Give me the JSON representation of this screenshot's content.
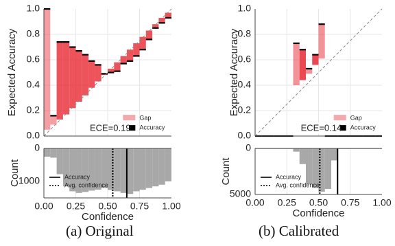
{
  "chart_data": [
    {
      "type": "bar",
      "panel": "Original",
      "caption": "(a) Original",
      "reliability": {
        "ylabel": "Expected Accuracy",
        "xlim": [
          0,
          1
        ],
        "ylim": [
          0,
          1
        ],
        "yticks": [
          "0.0",
          "0.2",
          "0.4",
          "0.6",
          "0.8",
          "1.0"
        ],
        "bins": [
          {
            "lo": 0.0,
            "hi": 0.05,
            "conf": 0.05,
            "acc": 1.0
          },
          {
            "lo": 0.05,
            "hi": 0.1,
            "conf": 0.09,
            "acc": 0.16
          },
          {
            "lo": 0.1,
            "hi": 0.15,
            "conf": 0.13,
            "acc": 0.74
          },
          {
            "lo": 0.15,
            "hi": 0.2,
            "conf": 0.17,
            "acc": 0.74
          },
          {
            "lo": 0.2,
            "hi": 0.25,
            "conf": 0.22,
            "acc": 0.7
          },
          {
            "lo": 0.25,
            "hi": 0.3,
            "conf": 0.27,
            "acc": 0.67
          },
          {
            "lo": 0.3,
            "hi": 0.35,
            "conf": 0.32,
            "acc": 0.64
          },
          {
            "lo": 0.35,
            "hi": 0.4,
            "conf": 0.38,
            "acc": 0.59
          },
          {
            "lo": 0.4,
            "hi": 0.45,
            "conf": 0.43,
            "acc": 0.56
          },
          {
            "lo": 0.45,
            "hi": 0.5,
            "conf": 0.48,
            "acc": 0.49
          },
          {
            "lo": 0.5,
            "hi": 0.55,
            "conf": 0.53,
            "acc": 0.5
          },
          {
            "lo": 0.55,
            "hi": 0.6,
            "conf": 0.58,
            "acc": 0.51
          },
          {
            "lo": 0.6,
            "hi": 0.65,
            "conf": 0.63,
            "acc": 0.57
          },
          {
            "lo": 0.65,
            "hi": 0.7,
            "conf": 0.68,
            "acc": 0.59
          },
          {
            "lo": 0.7,
            "hi": 0.75,
            "conf": 0.73,
            "acc": 0.63
          },
          {
            "lo": 0.75,
            "hi": 0.8,
            "conf": 0.78,
            "acc": 0.68
          },
          {
            "lo": 0.8,
            "hi": 0.85,
            "conf": 0.83,
            "acc": 0.76
          },
          {
            "lo": 0.85,
            "hi": 0.9,
            "conf": 0.88,
            "acc": 0.85
          },
          {
            "lo": 0.9,
            "hi": 0.95,
            "conf": 0.93,
            "acc": 0.89
          },
          {
            "lo": 0.95,
            "hi": 1.0,
            "conf": 0.97,
            "acc": 0.93
          }
        ],
        "ece_text": "ECE=0.19",
        "legend": [
          "Gap",
          "Accuracy"
        ]
      },
      "histogram": {
        "xlabel": "Confidence",
        "ylabel": "Count",
        "ylim": [
          0,
          1500
        ],
        "yticks": [
          "0",
          "1000"
        ],
        "xticks": [
          "0.00",
          "0.25",
          "0.50",
          "0.75",
          "1.00"
        ],
        "counts": [
          250,
          280,
          780,
          1150,
          1300,
          1350,
          1320,
          1280,
          1250,
          1200,
          1260,
          1300,
          1350,
          1380,
          1300,
          1250,
          1200,
          1150,
          1100,
          1000
        ],
        "accuracy_line": 0.65,
        "avg_confidence_line": 0.54,
        "legend": [
          "Accuracy",
          "Avg. confidence"
        ]
      }
    },
    {
      "type": "bar",
      "panel": "Calibrated",
      "caption": "(b) Calibrated",
      "reliability": {
        "ylabel": "Expected Accuracy",
        "xlim": [
          0,
          1
        ],
        "ylim": [
          0,
          1
        ],
        "yticks": [
          "0.0",
          "0.2",
          "0.4",
          "0.6",
          "0.8",
          "1.0"
        ],
        "bins": [
          {
            "lo": 0.0,
            "hi": 0.05,
            "conf": null,
            "acc": 0.0
          },
          {
            "lo": 0.05,
            "hi": 0.1,
            "conf": null,
            "acc": 0.0
          },
          {
            "lo": 0.1,
            "hi": 0.15,
            "conf": null,
            "acc": 0.0
          },
          {
            "lo": 0.15,
            "hi": 0.2,
            "conf": null,
            "acc": 0.0
          },
          {
            "lo": 0.2,
            "hi": 0.25,
            "conf": null,
            "acc": 0.0
          },
          {
            "lo": 0.25,
            "hi": 0.3,
            "conf": null,
            "acc": 0.0
          },
          {
            "lo": 0.3,
            "hi": 0.35,
            "conf": 0.4,
            "acc": 0.73
          },
          {
            "lo": 0.35,
            "hi": 0.4,
            "conf": 0.44,
            "acc": 0.68
          },
          {
            "lo": 0.4,
            "hi": 0.45,
            "conf": 0.49,
            "acc": 0.53
          },
          {
            "lo": 0.45,
            "hi": 0.5,
            "conf": 0.56,
            "acc": 0.64
          },
          {
            "lo": 0.5,
            "hi": 0.55,
            "conf": 0.61,
            "acc": 0.88
          },
          {
            "lo": 0.55,
            "hi": 0.6,
            "conf": null,
            "acc": 0.0
          },
          {
            "lo": 0.6,
            "hi": 0.65,
            "conf": null,
            "acc": 0.0
          },
          {
            "lo": 0.65,
            "hi": 0.7,
            "conf": null,
            "acc": 0.0
          },
          {
            "lo": 0.7,
            "hi": 0.75,
            "conf": null,
            "acc": 0.0
          },
          {
            "lo": 0.75,
            "hi": 0.8,
            "conf": null,
            "acc": 0.0
          },
          {
            "lo": 0.8,
            "hi": 0.85,
            "conf": null,
            "acc": 0.0
          },
          {
            "lo": 0.85,
            "hi": 0.9,
            "conf": null,
            "acc": 0.0
          },
          {
            "lo": 0.9,
            "hi": 0.95,
            "conf": null,
            "acc": 0.0
          },
          {
            "lo": 0.95,
            "hi": 1.0,
            "conf": null,
            "acc": 0.0
          }
        ],
        "ece_text": "ECE=0.14",
        "legend": [
          "Gap",
          "Accuracy"
        ]
      },
      "histogram": {
        "xlabel": "Confidence",
        "ylabel": "Count",
        "ylim": [
          0,
          5000
        ],
        "yticks": [
          "0",
          "5000"
        ],
        "xticks": [
          "0.00",
          "0.25",
          "0.50",
          "0.75",
          "1.00"
        ],
        "counts": [
          30,
          30,
          30,
          30,
          30,
          30,
          350,
          1700,
          3900,
          4300,
          4700,
          4400,
          1300,
          40,
          30,
          30,
          30,
          30,
          30,
          30
        ],
        "accuracy_line": 0.65,
        "avg_confidence_line": 0.51,
        "legend": [
          "Accuracy",
          "Avg. confidence"
        ]
      }
    }
  ]
}
